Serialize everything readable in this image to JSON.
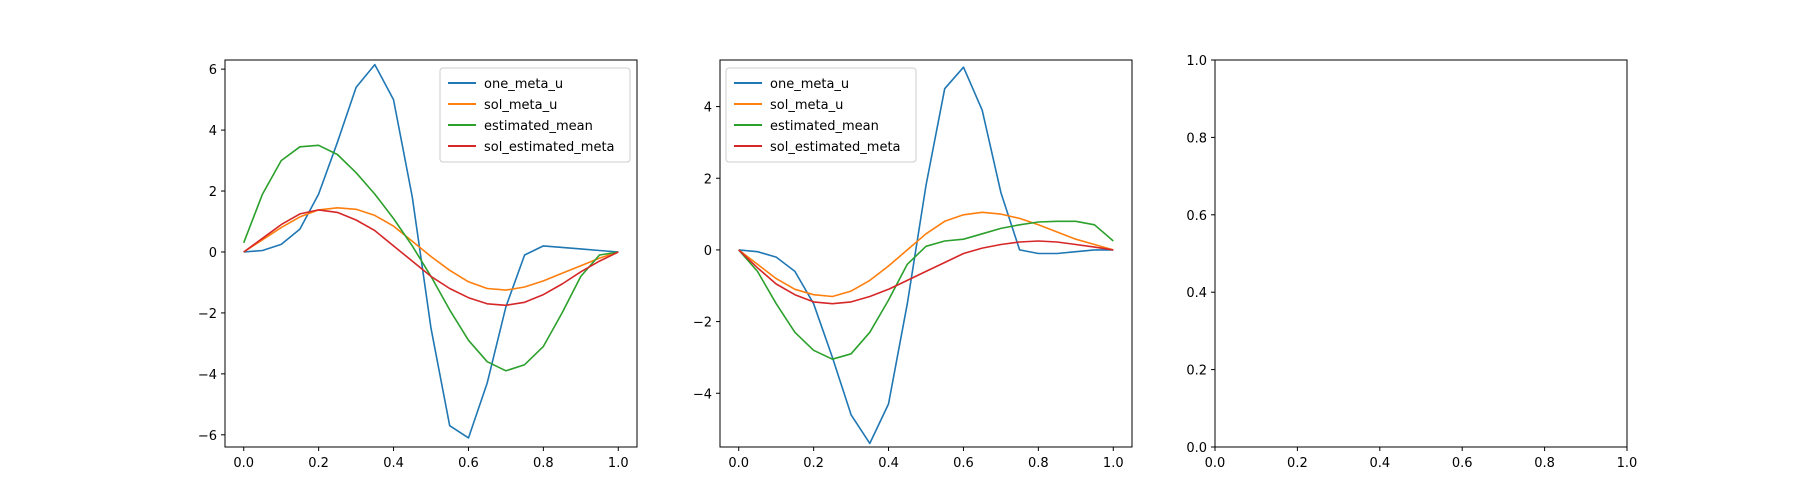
{
  "chart_data": [
    {
      "type": "line",
      "title": "",
      "xlabel": "",
      "ylabel": "",
      "xlim": [
        -0.05,
        1.05
      ],
      "ylim": [
        -6.4,
        6.3
      ],
      "xticks": [
        0.0,
        0.2,
        0.4,
        0.6,
        0.8,
        1.0
      ],
      "xtick_labels": [
        "0.0",
        "0.2",
        "0.4",
        "0.6",
        "0.8",
        "1.0"
      ],
      "yticks": [
        -6,
        -4,
        -2,
        0,
        2,
        4,
        6
      ],
      "ytick_labels": [
        "−6",
        "−4",
        "−2",
        "0",
        "2",
        "4",
        "6"
      ],
      "legend": "top-right",
      "grid": false,
      "series": [
        {
          "name": "one_meta_u",
          "color": "#1f77b4",
          "x": [
            0.0,
            0.05,
            0.1,
            0.15,
            0.2,
            0.25,
            0.3,
            0.35,
            0.4,
            0.45,
            0.5,
            0.55,
            0.6,
            0.65,
            0.7,
            0.75,
            0.8,
            0.85,
            0.9,
            0.95,
            1.0
          ],
          "y": [
            0.0,
            0.05,
            0.25,
            0.75,
            1.9,
            3.6,
            5.4,
            6.15,
            5.0,
            1.8,
            -2.5,
            -5.7,
            -6.1,
            -4.3,
            -1.8,
            -0.1,
            0.2,
            0.15,
            0.1,
            0.05,
            0.0
          ]
        },
        {
          "name": "sol_meta_u",
          "color": "#ff7f0e",
          "x": [
            0.0,
            0.05,
            0.1,
            0.15,
            0.2,
            0.25,
            0.3,
            0.35,
            0.4,
            0.45,
            0.5,
            0.55,
            0.6,
            0.65,
            0.7,
            0.75,
            0.8,
            0.85,
            0.9,
            0.95,
            1.0
          ],
          "y": [
            0.0,
            0.4,
            0.8,
            1.15,
            1.38,
            1.45,
            1.4,
            1.2,
            0.85,
            0.35,
            -0.15,
            -0.6,
            -0.98,
            -1.2,
            -1.25,
            -1.15,
            -0.95,
            -0.7,
            -0.45,
            -0.2,
            0.0
          ]
        },
        {
          "name": "estimated_mean",
          "color": "#2ca02c",
          "x": [
            0.0,
            0.05,
            0.1,
            0.15,
            0.2,
            0.25,
            0.3,
            0.35,
            0.4,
            0.45,
            0.5,
            0.55,
            0.6,
            0.65,
            0.7,
            0.75,
            0.8,
            0.85,
            0.9,
            0.95,
            1.0
          ],
          "y": [
            0.3,
            1.9,
            3.0,
            3.45,
            3.5,
            3.2,
            2.6,
            1.9,
            1.1,
            0.2,
            -0.8,
            -1.9,
            -2.9,
            -3.6,
            -3.9,
            -3.7,
            -3.1,
            -2.0,
            -0.8,
            -0.1,
            0.0
          ]
        },
        {
          "name": "sol_estimated_meta",
          "color": "#d62728",
          "x": [
            0.0,
            0.05,
            0.1,
            0.15,
            0.2,
            0.25,
            0.3,
            0.35,
            0.4,
            0.45,
            0.5,
            0.55,
            0.6,
            0.65,
            0.7,
            0.75,
            0.8,
            0.85,
            0.9,
            0.95,
            1.0
          ],
          "y": [
            0.0,
            0.45,
            0.9,
            1.25,
            1.38,
            1.3,
            1.05,
            0.7,
            0.2,
            -0.3,
            -0.8,
            -1.2,
            -1.5,
            -1.7,
            -1.75,
            -1.65,
            -1.4,
            -1.05,
            -0.65,
            -0.3,
            0.0
          ]
        }
      ]
    },
    {
      "type": "line",
      "title": "",
      "xlabel": "",
      "ylabel": "",
      "xlim": [
        -0.05,
        1.05
      ],
      "ylim": [
        -5.5,
        5.3
      ],
      "xticks": [
        0.0,
        0.2,
        0.4,
        0.6,
        0.8,
        1.0
      ],
      "xtick_labels": [
        "0.0",
        "0.2",
        "0.4",
        "0.6",
        "0.8",
        "1.0"
      ],
      "yticks": [
        -4,
        -2,
        0,
        2,
        4
      ],
      "ytick_labels": [
        "−4",
        "−2",
        "0",
        "2",
        "4"
      ],
      "legend": "top-left",
      "grid": false,
      "series": [
        {
          "name": "one_meta_u",
          "color": "#1f77b4",
          "x": [
            0.0,
            0.05,
            0.1,
            0.15,
            0.2,
            0.25,
            0.3,
            0.35,
            0.4,
            0.45,
            0.5,
            0.55,
            0.6,
            0.65,
            0.7,
            0.75,
            0.8,
            0.85,
            0.9,
            0.95,
            1.0
          ],
          "y": [
            0.0,
            -0.05,
            -0.2,
            -0.6,
            -1.5,
            -3.0,
            -4.6,
            -5.4,
            -4.3,
            -1.5,
            1.8,
            4.5,
            5.1,
            3.9,
            1.6,
            0.0,
            -0.1,
            -0.1,
            -0.05,
            0.0,
            0.0
          ]
        },
        {
          "name": "sol_meta_u",
          "color": "#ff7f0e",
          "x": [
            0.0,
            0.05,
            0.1,
            0.15,
            0.2,
            0.25,
            0.3,
            0.35,
            0.4,
            0.45,
            0.5,
            0.55,
            0.6,
            0.65,
            0.7,
            0.75,
            0.8,
            0.85,
            0.9,
            0.95,
            1.0
          ],
          "y": [
            0.0,
            -0.4,
            -0.8,
            -1.1,
            -1.25,
            -1.3,
            -1.15,
            -0.85,
            -0.45,
            0.0,
            0.45,
            0.8,
            0.98,
            1.05,
            1.0,
            0.88,
            0.7,
            0.5,
            0.3,
            0.15,
            0.0
          ]
        },
        {
          "name": "estimated_mean",
          "color": "#2ca02c",
          "x": [
            0.0,
            0.05,
            0.1,
            0.15,
            0.2,
            0.25,
            0.3,
            0.35,
            0.4,
            0.45,
            0.5,
            0.55,
            0.6,
            0.65,
            0.7,
            0.75,
            0.8,
            0.85,
            0.9,
            0.95,
            1.0
          ],
          "y": [
            0.0,
            -0.6,
            -1.5,
            -2.3,
            -2.8,
            -3.05,
            -2.9,
            -2.3,
            -1.4,
            -0.4,
            0.1,
            0.25,
            0.3,
            0.45,
            0.6,
            0.7,
            0.78,
            0.8,
            0.8,
            0.7,
            0.25
          ]
        },
        {
          "name": "sol_estimated_meta",
          "color": "#d62728",
          "x": [
            0.0,
            0.05,
            0.1,
            0.15,
            0.2,
            0.25,
            0.3,
            0.35,
            0.4,
            0.45,
            0.5,
            0.55,
            0.6,
            0.65,
            0.7,
            0.75,
            0.8,
            0.85,
            0.9,
            0.95,
            1.0
          ],
          "y": [
            0.0,
            -0.5,
            -0.95,
            -1.25,
            -1.45,
            -1.5,
            -1.45,
            -1.3,
            -1.1,
            -0.85,
            -0.6,
            -0.35,
            -0.1,
            0.05,
            0.15,
            0.22,
            0.25,
            0.22,
            0.15,
            0.08,
            0.0
          ]
        }
      ]
    },
    {
      "type": "line",
      "title": "",
      "xlabel": "",
      "ylabel": "",
      "xlim": [
        0.0,
        1.0
      ],
      "ylim": [
        0.0,
        1.0
      ],
      "xticks": [
        0.0,
        0.2,
        0.4,
        0.6,
        0.8,
        1.0
      ],
      "xtick_labels": [
        "0.0",
        "0.2",
        "0.4",
        "0.6",
        "0.8",
        "1.0"
      ],
      "yticks": [
        0.0,
        0.2,
        0.4,
        0.6,
        0.8,
        1.0
      ],
      "ytick_labels": [
        "0.0",
        "0.2",
        "0.4",
        "0.6",
        "0.8",
        "1.0"
      ],
      "legend": "none",
      "grid": false,
      "series": []
    }
  ]
}
